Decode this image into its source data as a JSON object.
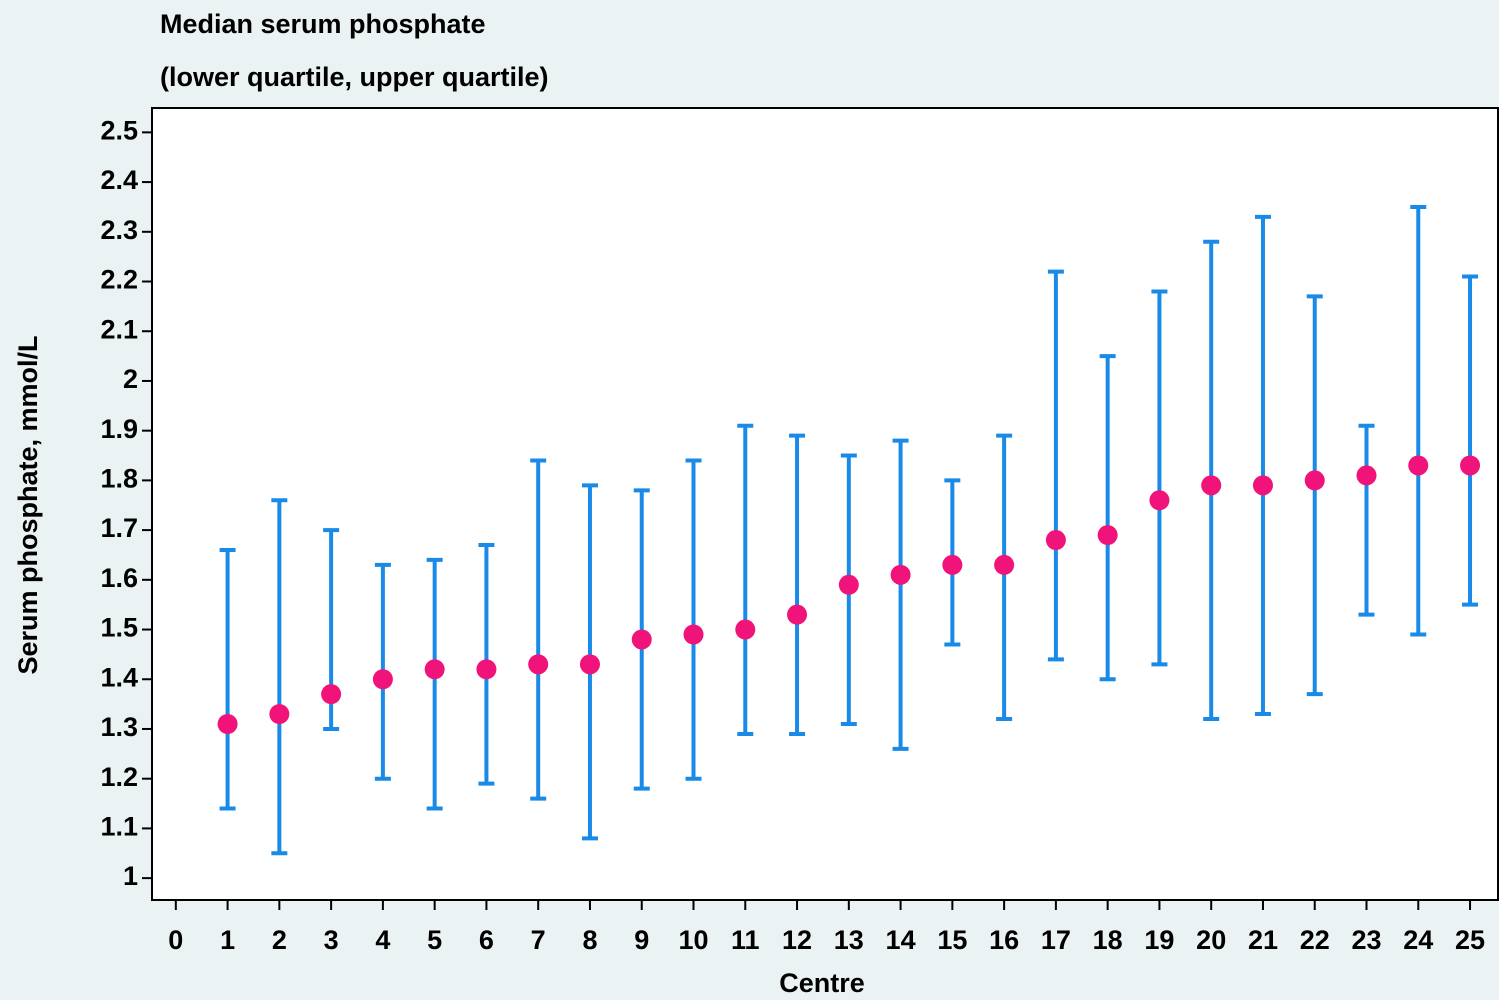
{
  "chart_data": {
    "type": "errorbar",
    "title": "Median serum phosphate",
    "subtitle": "(lower quartile, upper quartile)",
    "xlabel": "Centre",
    "ylabel": "Serum phosphate, mmol/L",
    "x": [
      1,
      2,
      3,
      4,
      5,
      6,
      7,
      8,
      9,
      10,
      11,
      12,
      13,
      14,
      15,
      16,
      17,
      18,
      19,
      20,
      21,
      22,
      23,
      24,
      25
    ],
    "series": [
      {
        "color": "#f0147a",
        "bar_color": "#1a8ae8",
        "values": [
          1.31,
          1.33,
          1.37,
          1.4,
          1.42,
          1.42,
          1.43,
          1.43,
          1.48,
          1.49,
          1.5,
          1.53,
          1.59,
          1.61,
          1.63,
          1.63,
          1.68,
          1.69,
          1.76,
          1.79,
          1.79,
          1.8,
          1.81,
          1.83,
          1.83
        ],
        "lower": [
          1.14,
          1.05,
          1.3,
          1.2,
          1.14,
          1.19,
          1.16,
          1.08,
          1.18,
          1.2,
          1.29,
          1.29,
          1.31,
          1.26,
          1.47,
          1.32,
          1.44,
          1.4,
          1.43,
          1.32,
          1.33,
          1.37,
          1.53,
          1.49,
          1.55
        ],
        "upper": [
          1.66,
          1.76,
          1.7,
          1.63,
          1.64,
          1.67,
          1.84,
          1.79,
          1.78,
          1.84,
          1.91,
          1.89,
          1.85,
          1.88,
          1.8,
          1.89,
          2.22,
          2.05,
          2.18,
          2.28,
          2.33,
          2.17,
          1.91,
          2.35,
          2.21
        ]
      }
    ],
    "xlim": [
      -0.46,
      25.54
    ],
    "ylim": [
      0.956,
      2.549
    ],
    "xticks": [
      0,
      1,
      2,
      3,
      4,
      5,
      6,
      7,
      8,
      9,
      10,
      11,
      12,
      13,
      14,
      15,
      16,
      17,
      18,
      19,
      20,
      21,
      22,
      23,
      24,
      25
    ],
    "yticks": [
      1,
      1.1,
      1.2,
      1.3,
      1.4,
      1.5,
      1.6,
      1.7,
      1.8,
      1.9,
      2,
      2.1,
      2.2,
      2.3,
      2.4,
      2.5
    ]
  }
}
